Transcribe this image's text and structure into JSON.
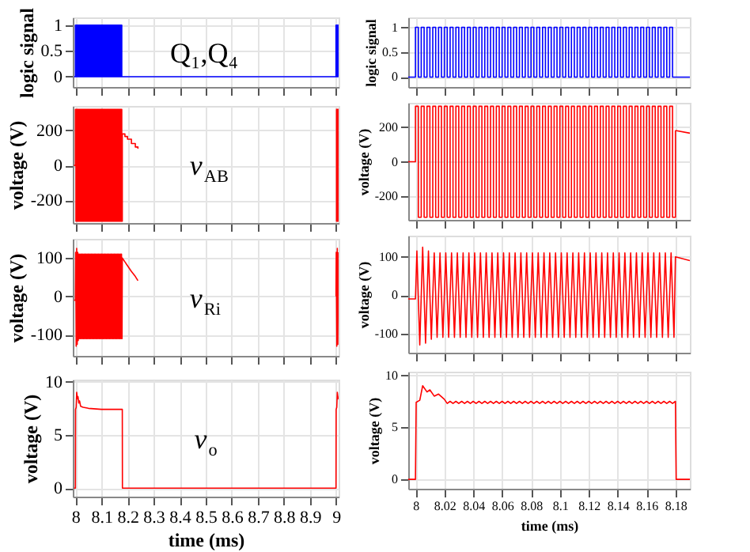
{
  "chart_data": [
    {
      "type": "step",
      "ylabel": "logic signal",
      "xlim": [
        7.99,
        9.01
      ],
      "xticks": [
        8,
        8.1,
        8.2,
        8.3,
        8.4,
        8.5,
        8.6,
        8.7,
        8.8,
        8.9,
        9
      ],
      "ylim": [
        -0.2,
        1.15
      ],
      "yticks": [
        0,
        0.5,
        1
      ],
      "tick_labels": "y",
      "grid": true,
      "annotations": [
        "Q₁,Q₄"
      ],
      "x": [
        7.995,
        8,
        8.002,
        8.004,
        8.006,
        8.008,
        8.01,
        8.012,
        8.014,
        8.016,
        8.018,
        8.02,
        8.022,
        8.024,
        8.026,
        8.028,
        8.03,
        8.032,
        8.034,
        8.036,
        8.038,
        8.04,
        8.042,
        8.044,
        8.046,
        8.048,
        8.05,
        8.052,
        8.054,
        8.056,
        8.058,
        8.06,
        8.062,
        8.064,
        8.066,
        8.068,
        8.07,
        8.072,
        8.074,
        8.076,
        8.078,
        8.08,
        8.082,
        8.084,
        8.086,
        8.088,
        8.09,
        8.092,
        8.094,
        8.096,
        8.098,
        8.1,
        8.102,
        8.104,
        8.106,
        8.108,
        8.11,
        8.112,
        8.114,
        8.116,
        8.118,
        8.12,
        8.122,
        8.124,
        8.126,
        8.128,
        8.13,
        8.132,
        8.134,
        8.136,
        8.138,
        8.14,
        8.142,
        8.144,
        8.146,
        8.148,
        8.15,
        8.152,
        8.154,
        8.156,
        8.158,
        8.16,
        8.162,
        8.164,
        8.166,
        8.168,
        8.17,
        8.172,
        8.174,
        8.176,
        8.178,
        8.18,
        9,
        9.002,
        9.004,
        9.006,
        9.008,
        9.01
      ],
      "series": [
        {
          "color": "#0000ff",
          "values": [
            0,
            1,
            0,
            1,
            0,
            1,
            0,
            1,
            0,
            1,
            0,
            1,
            0,
            1,
            0,
            1,
            0,
            1,
            0,
            1,
            0,
            1,
            0,
            1,
            0,
            1,
            0,
            1,
            0,
            1,
            0,
            1,
            0,
            1,
            0,
            1,
            0,
            1,
            0,
            1,
            0,
            1,
            0,
            1,
            0,
            1,
            0,
            1,
            0,
            1,
            0,
            1,
            0,
            1,
            0,
            1,
            0,
            1,
            0,
            1,
            0,
            1,
            0,
            1,
            0,
            1,
            0,
            1,
            0,
            1,
            0,
            1,
            0,
            1,
            0,
            1,
            0,
            1,
            0,
            1,
            0,
            1,
            0,
            1,
            0,
            1,
            0,
            1,
            0,
            1,
            0,
            0,
            1,
            0,
            1,
            0,
            1,
            1
          ]
        }
      ]
    },
    {
      "type": "step",
      "ylabel": "voltage (V)",
      "xlim": [
        7.99,
        9.01
      ],
      "xticks": [
        8,
        8.1,
        8.2,
        8.3,
        8.4,
        8.5,
        8.6,
        8.7,
        8.8,
        8.9,
        9
      ],
      "ylim": [
        -330,
        340
      ],
      "yticks": [
        200,
        0,
        -200
      ],
      "tick_labels": "y",
      "grid": true,
      "annotations": [
        "v$_{AB}$"
      ],
      "x": [
        7.995,
        8,
        8.002,
        8.004,
        8.006,
        8.008,
        8.01,
        8.012,
        8.014,
        8.016,
        8.018,
        8.02,
        8.022,
        8.024,
        8.026,
        8.028,
        8.03,
        8.032,
        8.034,
        8.036,
        8.038,
        8.04,
        8.042,
        8.044,
        8.046,
        8.048,
        8.05,
        8.052,
        8.054,
        8.056,
        8.058,
        8.06,
        8.062,
        8.064,
        8.066,
        8.068,
        8.07,
        8.072,
        8.074,
        8.076,
        8.078,
        8.08,
        8.082,
        8.084,
        8.086,
        8.088,
        8.09,
        8.092,
        8.094,
        8.096,
        8.098,
        8.1,
        8.102,
        8.104,
        8.106,
        8.108,
        8.11,
        8.112,
        8.114,
        8.116,
        8.118,
        8.12,
        8.122,
        8.124,
        8.126,
        8.128,
        8.13,
        8.132,
        8.134,
        8.136,
        8.138,
        8.14,
        8.142,
        8.144,
        8.146,
        8.148,
        8.15,
        8.152,
        8.154,
        8.156,
        8.158,
        8.16,
        8.162,
        8.164,
        8.166,
        8.168,
        8.17,
        8.172,
        8.174,
        8.176,
        8.178,
        8.18,
        8.19,
        8.2,
        8.215,
        8.23,
        8.24,
        8.5,
        9,
        9.002,
        9.004,
        9.006,
        9.008,
        9.01
      ],
      "series": [
        {
          "color": "#ff0000",
          "values": [
            0,
            320,
            -320,
            320,
            -320,
            320,
            -320,
            320,
            -320,
            320,
            -320,
            320,
            -320,
            320,
            -320,
            320,
            -320,
            320,
            -320,
            320,
            -320,
            320,
            -320,
            320,
            -320,
            320,
            -320,
            320,
            -320,
            320,
            -320,
            320,
            -320,
            320,
            -320,
            320,
            -320,
            320,
            -320,
            320,
            -320,
            320,
            -320,
            320,
            -320,
            320,
            -320,
            320,
            -320,
            320,
            -320,
            320,
            -320,
            320,
            -320,
            320,
            -320,
            320,
            -320,
            320,
            -320,
            320,
            -320,
            320,
            -320,
            320,
            -320,
            320,
            -320,
            320,
            -320,
            320,
            -320,
            320,
            -320,
            320,
            -320,
            320,
            -320,
            320,
            -320,
            320,
            -320,
            320,
            -320,
            320,
            -320,
            320,
            -320,
            320,
            -320,
            180,
            165,
            150,
            125,
            105,
            95,
            null,
            320,
            -320,
            320,
            -320,
            320,
            320
          ]
        }
      ]
    },
    {
      "type": "line",
      "ylabel": "voltage (V)",
      "xlim": [
        7.99,
        9.01
      ],
      "xticks": [
        8,
        8.1,
        8.2,
        8.3,
        8.4,
        8.5,
        8.6,
        8.7,
        8.8,
        8.9,
        9
      ],
      "ylim": [
        -155,
        150
      ],
      "yticks": [
        100,
        0,
        -100
      ],
      "tick_labels": "y",
      "grid": true,
      "annotations": [
        "v$_{Ri}$"
      ],
      "x": [
        7.995,
        8,
        8.001,
        8.003,
        8.005,
        8.007,
        8.009,
        8.011,
        8.013,
        8.015,
        8.017,
        8.019,
        8.021,
        8.023,
        8.025,
        8.027,
        8.029,
        8.031,
        8.033,
        8.035,
        8.037,
        8.039,
        8.041,
        8.043,
        8.045,
        8.047,
        8.049,
        8.051,
        8.053,
        8.055,
        8.057,
        8.059,
        8.061,
        8.063,
        8.065,
        8.067,
        8.069,
        8.071,
        8.073,
        8.075,
        8.077,
        8.079,
        8.081,
        8.083,
        8.085,
        8.087,
        8.089,
        8.091,
        8.093,
        8.095,
        8.097,
        8.099,
        8.101,
        8.103,
        8.105,
        8.107,
        8.109,
        8.111,
        8.113,
        8.115,
        8.117,
        8.119,
        8.121,
        8.123,
        8.125,
        8.127,
        8.129,
        8.131,
        8.133,
        8.135,
        8.137,
        8.139,
        8.141,
        8.143,
        8.145,
        8.147,
        8.149,
        8.151,
        8.153,
        8.155,
        8.157,
        8.159,
        8.161,
        8.163,
        8.165,
        8.167,
        8.169,
        8.171,
        8.173,
        8.175,
        8.177,
        8.179,
        8.18,
        8.19,
        8.2,
        8.215,
        8.23,
        8.24,
        8.5,
        9,
        9.001,
        9.003,
        9.005,
        9.007,
        9.009
      ],
      "series": [
        {
          "color": "#ff0000",
          "values": [
            -10,
            -10,
            115,
            -130,
            125,
            -125,
            115,
            -115,
            110,
            -110,
            110,
            -110,
            110,
            -110,
            110,
            -110,
            110,
            -110,
            110,
            -110,
            110,
            -110,
            110,
            -110,
            110,
            -110,
            110,
            -110,
            110,
            -110,
            110,
            -110,
            110,
            -110,
            110,
            -110,
            110,
            -110,
            110,
            -110,
            110,
            -110,
            110,
            -110,
            110,
            -110,
            110,
            -110,
            110,
            -110,
            110,
            -110,
            110,
            -110,
            110,
            -110,
            110,
            -110,
            110,
            -110,
            110,
            -110,
            110,
            -110,
            110,
            -110,
            110,
            -110,
            110,
            -110,
            110,
            -110,
            110,
            -110,
            110,
            -110,
            110,
            -110,
            110,
            -110,
            110,
            -110,
            110,
            -110,
            110,
            -110,
            110,
            -110,
            110,
            -110,
            110,
            -110,
            100,
            90,
            80,
            65,
            52,
            41,
            null,
            0,
            115,
            -130,
            125,
            -125,
            115
          ]
        }
      ]
    },
    {
      "type": "line",
      "ylabel": "voltage (V)",
      "xlabel": "time (ms)",
      "xlim": [
        7.99,
        9.01
      ],
      "xticks": [
        8,
        8.1,
        8.2,
        8.3,
        8.4,
        8.5,
        8.6,
        8.7,
        8.8,
        8.9,
        9
      ],
      "ylim": [
        -0.8,
        10.2
      ],
      "yticks": [
        0,
        5,
        10
      ],
      "grid": true,
      "annotations": [
        "v$_{o}$"
      ],
      "x": [
        7.995,
        8,
        8.0005,
        8.003,
        8.005,
        8.008,
        8.01,
        8.013,
        8.016,
        8.02,
        8.03,
        8.05,
        8.1,
        8.15,
        8.18,
        8.1805,
        9,
        9.0005,
        9.003,
        9.005,
        9.008,
        9.01
      ],
      "series": [
        {
          "color": "#ff0000",
          "values": [
            0,
            0,
            7.4,
            7.6,
            9,
            8.4,
            8.6,
            8,
            8.2,
            7.7,
            7.6,
            7.5,
            7.4,
            7.4,
            7.4,
            0,
            0,
            7.4,
            7.6,
            9,
            8.4,
            8.6
          ]
        }
      ]
    },
    {
      "type": "step",
      "ylabel": "logic signal",
      "xlim": [
        7.995,
        8.19
      ],
      "xticks": [
        8,
        8.02,
        8.04,
        8.06,
        8.08,
        8.1,
        8.12,
        8.14,
        8.16,
        8.18
      ],
      "ylim": [
        -0.2,
        1.2
      ],
      "yticks": [
        0,
        0.5,
        1
      ],
      "tick_labels": "y",
      "grid": true,
      "x": [
        7.995,
        8,
        8.002,
        8.004,
        8.006,
        8.008,
        8.01,
        8.012,
        8.014,
        8.016,
        8.018,
        8.02,
        8.022,
        8.024,
        8.026,
        8.028,
        8.03,
        8.032,
        8.034,
        8.036,
        8.038,
        8.04,
        8.042,
        8.044,
        8.046,
        8.048,
        8.05,
        8.052,
        8.054,
        8.056,
        8.058,
        8.06,
        8.062,
        8.064,
        8.066,
        8.068,
        8.07,
        8.072,
        8.074,
        8.076,
        8.078,
        8.08,
        8.082,
        8.084,
        8.086,
        8.088,
        8.09,
        8.092,
        8.094,
        8.096,
        8.098,
        8.1,
        8.102,
        8.104,
        8.106,
        8.108,
        8.11,
        8.112,
        8.114,
        8.116,
        8.118,
        8.12,
        8.122,
        8.124,
        8.126,
        8.128,
        8.13,
        8.132,
        8.134,
        8.136,
        8.138,
        8.14,
        8.142,
        8.144,
        8.146,
        8.148,
        8.15,
        8.152,
        8.154,
        8.156,
        8.158,
        8.16,
        8.162,
        8.164,
        8.166,
        8.168,
        8.17,
        8.172,
        8.174,
        8.176,
        8.178,
        8.18,
        8.19
      ],
      "series": [
        {
          "color": "#0000ff",
          "values": [
            0,
            1,
            0,
            1,
            0,
            1,
            0,
            1,
            0,
            1,
            0,
            1,
            0,
            1,
            0,
            1,
            0,
            1,
            0,
            1,
            0,
            1,
            0,
            1,
            0,
            1,
            0,
            1,
            0,
            1,
            0,
            1,
            0,
            1,
            0,
            1,
            0,
            1,
            0,
            1,
            0,
            1,
            0,
            1,
            0,
            1,
            0,
            1,
            0,
            1,
            0,
            1,
            0,
            1,
            0,
            1,
            0,
            1,
            0,
            1,
            0,
            1,
            0,
            1,
            0,
            1,
            0,
            1,
            0,
            1,
            0,
            1,
            0,
            1,
            0,
            1,
            0,
            1,
            0,
            1,
            0,
            1,
            0,
            1,
            0,
            1,
            0,
            1,
            0,
            1,
            0,
            0,
            0
          ]
        }
      ]
    },
    {
      "type": "step",
      "ylabel": "voltage (V)",
      "xlim": [
        7.995,
        8.19
      ],
      "xticks": [
        8,
        8.02,
        8.04,
        8.06,
        8.08,
        8.1,
        8.12,
        8.14,
        8.16,
        8.18
      ],
      "ylim": [
        -335,
        340
      ],
      "yticks": [
        200,
        0,
        -200
      ],
      "tick_labels": "y",
      "grid": true,
      "x": [
        7.995,
        8,
        8.002,
        8.004,
        8.006,
        8.008,
        8.01,
        8.012,
        8.014,
        8.016,
        8.018,
        8.02,
        8.022,
        8.024,
        8.026,
        8.028,
        8.03,
        8.032,
        8.034,
        8.036,
        8.038,
        8.04,
        8.042,
        8.044,
        8.046,
        8.048,
        8.05,
        8.052,
        8.054,
        8.056,
        8.058,
        8.06,
        8.062,
        8.064,
        8.066,
        8.068,
        8.07,
        8.072,
        8.074,
        8.076,
        8.078,
        8.08,
        8.082,
        8.084,
        8.086,
        8.088,
        8.09,
        8.092,
        8.094,
        8.096,
        8.098,
        8.1,
        8.102,
        8.104,
        8.106,
        8.108,
        8.11,
        8.112,
        8.114,
        8.116,
        8.118,
        8.12,
        8.122,
        8.124,
        8.126,
        8.128,
        8.13,
        8.132,
        8.134,
        8.136,
        8.138,
        8.14,
        8.142,
        8.144,
        8.146,
        8.148,
        8.15,
        8.152,
        8.154,
        8.156,
        8.158,
        8.16,
        8.162,
        8.164,
        8.166,
        8.168,
        8.17,
        8.172,
        8.174,
        8.176,
        8.178,
        8.18
      ],
      "series": [
        {
          "color": "#ff0000",
          "values": [
            0,
            320,
            -320,
            320,
            -320,
            320,
            -320,
            320,
            -320,
            320,
            -320,
            320,
            -320,
            320,
            -320,
            320,
            -320,
            320,
            -320,
            320,
            -320,
            320,
            -320,
            320,
            -320,
            320,
            -320,
            320,
            -320,
            320,
            -320,
            320,
            -320,
            320,
            -320,
            320,
            -320,
            320,
            -320,
            320,
            -320,
            320,
            -320,
            320,
            -320,
            320,
            -320,
            320,
            -320,
            320,
            -320,
            320,
            -320,
            320,
            -320,
            320,
            -320,
            320,
            -320,
            320,
            -320,
            320,
            -320,
            320,
            -320,
            320,
            -320,
            320,
            -320,
            320,
            -320,
            320,
            -320,
            320,
            -320,
            320,
            -320,
            320,
            -320,
            320,
            -320,
            320,
            -320,
            320,
            -320,
            320,
            -320,
            320,
            -320,
            320,
            -320,
            180
          ]
        },
        {
          "color": "#ff0000",
          "type": "line",
          "x": [
            8.18,
            8.19
          ],
          "values": [
            180,
            165
          ]
        }
      ]
    },
    {
      "type": "line",
      "ylabel": "voltage (V)",
      "xlim": [
        7.995,
        8.19
      ],
      "xticks": [
        8,
        8.02,
        8.04,
        8.06,
        8.08,
        8.1,
        8.12,
        8.14,
        8.16,
        8.18
      ],
      "ylim": [
        -150,
        155
      ],
      "yticks": [
        100,
        0,
        -100
      ],
      "tick_labels": "y",
      "grid": true,
      "x": [
        7.995,
        8,
        8.001,
        8.003,
        8.005,
        8.007,
        8.009,
        8.011,
        8.013,
        8.015,
        8.017,
        8.019,
        8.021,
        8.023,
        8.025,
        8.027,
        8.029,
        8.031,
        8.033,
        8.035,
        8.037,
        8.039,
        8.041,
        8.043,
        8.045,
        8.047,
        8.049,
        8.051,
        8.053,
        8.055,
        8.057,
        8.059,
        8.061,
        8.063,
        8.065,
        8.067,
        8.069,
        8.071,
        8.073,
        8.075,
        8.077,
        8.079,
        8.081,
        8.083,
        8.085,
        8.087,
        8.089,
        8.091,
        8.093,
        8.095,
        8.097,
        8.099,
        8.101,
        8.103,
        8.105,
        8.107,
        8.109,
        8.111,
        8.113,
        8.115,
        8.117,
        8.119,
        8.121,
        8.123,
        8.125,
        8.127,
        8.129,
        8.131,
        8.133,
        8.135,
        8.137,
        8.139,
        8.141,
        8.143,
        8.145,
        8.147,
        8.149,
        8.151,
        8.153,
        8.155,
        8.157,
        8.159,
        8.161,
        8.163,
        8.165,
        8.167,
        8.169,
        8.171,
        8.173,
        8.175,
        8.177,
        8.179,
        8.18,
        8.19
      ],
      "series": [
        {
          "color": "#ff0000",
          "values": [
            -10,
            -10,
            115,
            -130,
            125,
            -125,
            115,
            -115,
            110,
            -110,
            110,
            -110,
            110,
            -110,
            110,
            -110,
            110,
            -110,
            110,
            -110,
            110,
            -110,
            110,
            -110,
            110,
            -110,
            110,
            -110,
            110,
            -110,
            110,
            -110,
            110,
            -110,
            110,
            -110,
            110,
            -110,
            110,
            -110,
            110,
            -110,
            110,
            -110,
            110,
            -110,
            110,
            -110,
            110,
            -110,
            110,
            -110,
            110,
            -110,
            110,
            -110,
            110,
            -110,
            110,
            -110,
            110,
            -110,
            110,
            -110,
            110,
            -110,
            110,
            -110,
            110,
            -110,
            110,
            -110,
            110,
            -110,
            110,
            -110,
            110,
            -110,
            110,
            -110,
            110,
            -110,
            110,
            -110,
            110,
            -110,
            110,
            -110,
            110,
            -110,
            110,
            -110,
            100,
            90
          ]
        }
      ]
    },
    {
      "type": "line",
      "ylabel": "voltage (V)",
      "xlabel": "time (ms)",
      "xlim": [
        7.995,
        8.19
      ],
      "xticks": [
        8,
        8.02,
        8.04,
        8.06,
        8.08,
        8.1,
        8.12,
        8.14,
        8.16,
        8.18
      ],
      "ylim": [
        -0.9,
        10.35
      ],
      "yticks": [
        0,
        5,
        10
      ],
      "grid": true,
      "x": [
        7.995,
        8,
        8.0005,
        8.003,
        8.005,
        8.008,
        8.01,
        8.013,
        8.016,
        8.02,
        8.022,
        8.024,
        8.026,
        8.028,
        8.03,
        8.032,
        8.034,
        8.036,
        8.038,
        8.04,
        8.042,
        8.044,
        8.046,
        8.048,
        8.05,
        8.052,
        8.054,
        8.056,
        8.058,
        8.06,
        8.062,
        8.064,
        8.066,
        8.068,
        8.07,
        8.072,
        8.074,
        8.076,
        8.078,
        8.08,
        8.082,
        8.084,
        8.086,
        8.088,
        8.09,
        8.092,
        8.094,
        8.096,
        8.098,
        8.1,
        8.102,
        8.104,
        8.106,
        8.108,
        8.11,
        8.112,
        8.114,
        8.116,
        8.118,
        8.12,
        8.122,
        8.124,
        8.126,
        8.128,
        8.13,
        8.132,
        8.134,
        8.136,
        8.138,
        8.14,
        8.142,
        8.144,
        8.146,
        8.148,
        8.15,
        8.152,
        8.154,
        8.156,
        8.158,
        8.16,
        8.162,
        8.164,
        8.166,
        8.168,
        8.17,
        8.172,
        8.174,
        8.176,
        8.178,
        8.18,
        8.1805,
        8.19
      ],
      "series": [
        {
          "color": "#ff0000",
          "values": [
            0,
            0,
            7.4,
            7.6,
            9,
            8.4,
            8.6,
            8,
            8.2,
            7.7,
            7.3,
            7.5,
            7.3,
            7.5,
            7.3,
            7.5,
            7.3,
            7.5,
            7.3,
            7.5,
            7.3,
            7.5,
            7.3,
            7.5,
            7.3,
            7.5,
            7.3,
            7.5,
            7.3,
            7.5,
            7.3,
            7.5,
            7.3,
            7.5,
            7.3,
            7.5,
            7.3,
            7.5,
            7.3,
            7.5,
            7.3,
            7.5,
            7.3,
            7.5,
            7.3,
            7.5,
            7.3,
            7.5,
            7.3,
            7.5,
            7.3,
            7.5,
            7.3,
            7.5,
            7.3,
            7.5,
            7.3,
            7.5,
            7.3,
            7.5,
            7.3,
            7.5,
            7.3,
            7.5,
            7.3,
            7.5,
            7.3,
            7.5,
            7.3,
            7.5,
            7.3,
            7.5,
            7.3,
            7.5,
            7.3,
            7.5,
            7.3,
            7.5,
            7.3,
            7.5,
            7.3,
            7.5,
            7.3,
            7.5,
            7.3,
            7.5,
            7.3,
            7.5,
            7.3,
            7.5,
            0,
            0
          ]
        }
      ]
    }
  ]
}
